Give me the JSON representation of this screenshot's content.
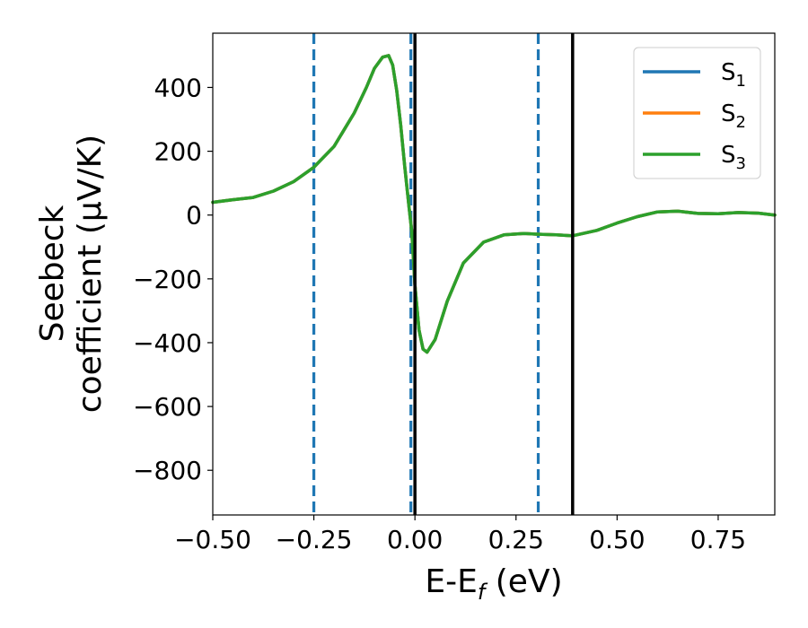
{
  "chart_data": {
    "type": "line",
    "xlabel": "E-E",
    "xlabel_sub": "f",
    "xlabel_units": " (eV)",
    "ylabel_line1": "Seebeck",
    "ylabel_line2": "coefficient  (μV/K)",
    "xlim": [
      -0.5,
      0.89
    ],
    "ylim": [
      -940,
      570
    ],
    "xticks": [
      -0.5,
      -0.25,
      0.0,
      0.25,
      0.5,
      0.75
    ],
    "xtick_labels": [
      "−0.50",
      "−0.25",
      "0.00",
      "0.25",
      "0.50",
      "0.75"
    ],
    "yticks": [
      400,
      200,
      0,
      -200,
      -400,
      -600,
      -800
    ],
    "ytick_labels": [
      "400",
      "200",
      "0",
      "−200",
      "−400",
      "−600",
      "−800"
    ],
    "grid": false,
    "legend_position": "top-right",
    "series": [
      {
        "name": "S",
        "sub": "1",
        "color": "#1f77b4",
        "x": [
          -0.5,
          -0.45,
          -0.4,
          -0.35,
          -0.3,
          -0.25,
          -0.2,
          -0.15,
          -0.12,
          -0.1,
          -0.08,
          -0.065,
          -0.055,
          -0.045,
          -0.035,
          -0.025,
          -0.015,
          -0.008,
          0.0,
          0.01,
          0.02,
          0.03,
          0.05,
          0.08,
          0.12,
          0.17,
          0.22,
          0.27,
          0.3,
          0.35,
          0.39,
          0.45,
          0.5,
          0.55,
          0.6,
          0.65,
          0.7,
          0.75,
          0.8,
          0.85,
          0.89
        ],
        "y": [
          40,
          48,
          55,
          75,
          105,
          150,
          215,
          320,
          400,
          460,
          495,
          500,
          470,
          390,
          280,
          150,
          30,
          -50,
          -220,
          -360,
          -420,
          -430,
          -390,
          -270,
          -150,
          -85,
          -62,
          -58,
          -60,
          -62,
          -65,
          -48,
          -25,
          -5,
          10,
          12,
          5,
          4,
          8,
          6,
          0
        ]
      },
      {
        "name": "S",
        "sub": "2",
        "color": "#ff7f0e",
        "x": [
          -0.5,
          -0.45,
          -0.4,
          -0.35,
          -0.3,
          -0.25,
          -0.2,
          -0.15,
          -0.12,
          -0.1,
          -0.08,
          -0.065,
          -0.055,
          -0.045,
          -0.035,
          -0.025,
          -0.015,
          -0.008,
          0.0,
          0.01,
          0.02,
          0.03,
          0.05,
          0.08,
          0.12,
          0.17,
          0.22,
          0.27,
          0.3,
          0.35,
          0.39,
          0.45,
          0.5,
          0.55,
          0.6,
          0.65,
          0.7,
          0.75,
          0.8,
          0.85,
          0.89
        ],
        "y": [
          40,
          48,
          55,
          75,
          105,
          150,
          215,
          320,
          400,
          460,
          495,
          500,
          470,
          390,
          280,
          150,
          30,
          -50,
          -220,
          -360,
          -420,
          -430,
          -390,
          -270,
          -150,
          -85,
          -62,
          -58,
          -60,
          -62,
          -65,
          -48,
          -25,
          -5,
          10,
          12,
          5,
          4,
          8,
          6,
          0
        ]
      },
      {
        "name": "S",
        "sub": "3",
        "color": "#2ca02c",
        "x": [
          -0.5,
          -0.45,
          -0.4,
          -0.35,
          -0.3,
          -0.25,
          -0.2,
          -0.15,
          -0.12,
          -0.1,
          -0.08,
          -0.065,
          -0.055,
          -0.045,
          -0.035,
          -0.025,
          -0.015,
          -0.008,
          0.0,
          0.01,
          0.02,
          0.03,
          0.05,
          0.08,
          0.12,
          0.17,
          0.22,
          0.27,
          0.3,
          0.35,
          0.39,
          0.45,
          0.5,
          0.55,
          0.6,
          0.65,
          0.7,
          0.75,
          0.8,
          0.85,
          0.89
        ],
        "y": [
          40,
          48,
          55,
          75,
          105,
          150,
          215,
          320,
          400,
          460,
          495,
          500,
          470,
          390,
          280,
          150,
          30,
          -50,
          -220,
          -360,
          -420,
          -430,
          -390,
          -270,
          -150,
          -85,
          -62,
          -58,
          -60,
          -62,
          -65,
          -48,
          -25,
          -5,
          10,
          12,
          5,
          4,
          8,
          6,
          0
        ]
      }
    ],
    "vlines": [
      {
        "x": -0.25,
        "style": "dashed",
        "color": "#1f77b4"
      },
      {
        "x": -0.01,
        "style": "dashed",
        "color": "#1f77b4"
      },
      {
        "x": 0.305,
        "style": "dashed",
        "color": "#1f77b4"
      },
      {
        "x": 0.0,
        "style": "solid",
        "color": "#000000"
      },
      {
        "x": 0.39,
        "style": "solid",
        "color": "#000000"
      }
    ]
  }
}
